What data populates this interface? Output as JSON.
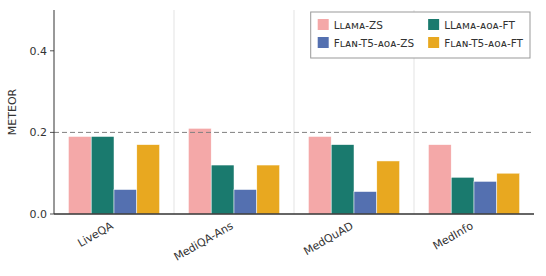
{
  "chart_data": {
    "type": "bar",
    "ylabel": "METEOR",
    "categories": [
      "LiveQA",
      "MediQA-Ans",
      "MedQuAD",
      "MedInfo"
    ],
    "series": [
      {
        "name": "Lʟᴀᴍᴀ-ZS",
        "color": "#f4a8a8",
        "values": [
          0.19,
          0.21,
          0.19,
          0.17
        ]
      },
      {
        "name": "LLᴀᴍᴀ-ᴀᴏᴀ-FT",
        "color": "#1a7a6e",
        "values": [
          0.19,
          0.12,
          0.17,
          0.09
        ]
      },
      {
        "name": "Fʟᴀɴ-T5-ᴀᴏᴀ-ZS",
        "color": "#5470b0",
        "values": [
          0.06,
          0.06,
          0.055,
          0.08
        ]
      },
      {
        "name": "Fʟᴀɴ-T5-ᴀᴏᴀ-FT",
        "color": "#e8a820",
        "values": [
          0.17,
          0.12,
          0.13,
          0.1
        ]
      }
    ],
    "ylim": [
      0,
      0.5
    ],
    "yticks": [
      {
        "value": 0,
        "label": "0.0"
      },
      0.2,
      0.4
    ],
    "hline": 0.2,
    "grid": false,
    "legend": "top-right"
  }
}
